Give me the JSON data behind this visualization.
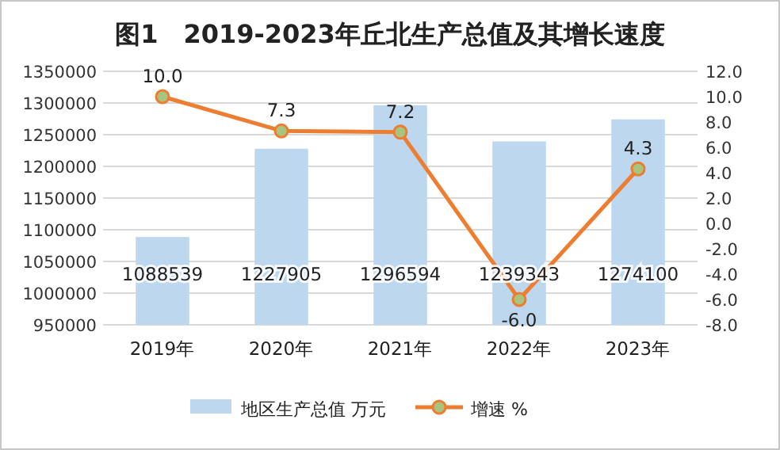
{
  "chart_data": {
    "type": "bar",
    "title": "图1　2019-2023年丘北生产总值及其增长速度",
    "categories": [
      "2019年",
      "2020年",
      "2021年",
      "2022年",
      "2023年"
    ],
    "series": [
      {
        "name": "地区生产总值 万元",
        "color": "#bdd7ee",
        "values": [
          1088539,
          1227905,
          1296594,
          1239343,
          1274100
        ]
      },
      {
        "name": "增速 %",
        "type": "line",
        "axis": "y2",
        "color": "#ed7d31",
        "values": [
          10.0,
          7.3,
          7.2,
          -6.0,
          4.3
        ],
        "value_labels": [
          "10.0",
          "7.3",
          "7.2",
          "-6.0",
          "4.3"
        ]
      }
    ],
    "ylim": [
      950000,
      1350000
    ],
    "yticks": [
      950000,
      1000000,
      1050000,
      1100000,
      1150000,
      1200000,
      1250000,
      1300000,
      1350000
    ],
    "y2lim": [
      -8,
      12
    ],
    "y2ticks": [
      {
        "value": -8,
        "label": "-8.0"
      },
      {
        "value": -6,
        "label": "-6.0"
      },
      {
        "value": -4,
        "label": "-4.0"
      },
      {
        "value": -2,
        "label": "-2.0"
      },
      {
        "value": 0,
        "label": "0.0"
      },
      {
        "value": 2,
        "label": "2.0"
      },
      {
        "value": 4,
        "label": "4.0"
      },
      {
        "value": 6,
        "label": "6.0"
      },
      {
        "value": 8,
        "label": "8.0"
      },
      {
        "value": 10,
        "label": "10.0"
      },
      {
        "value": 12,
        "label": "12.0"
      }
    ],
    "grid": "y",
    "legend": "bottom",
    "marker": "circle",
    "data_labels": true
  }
}
